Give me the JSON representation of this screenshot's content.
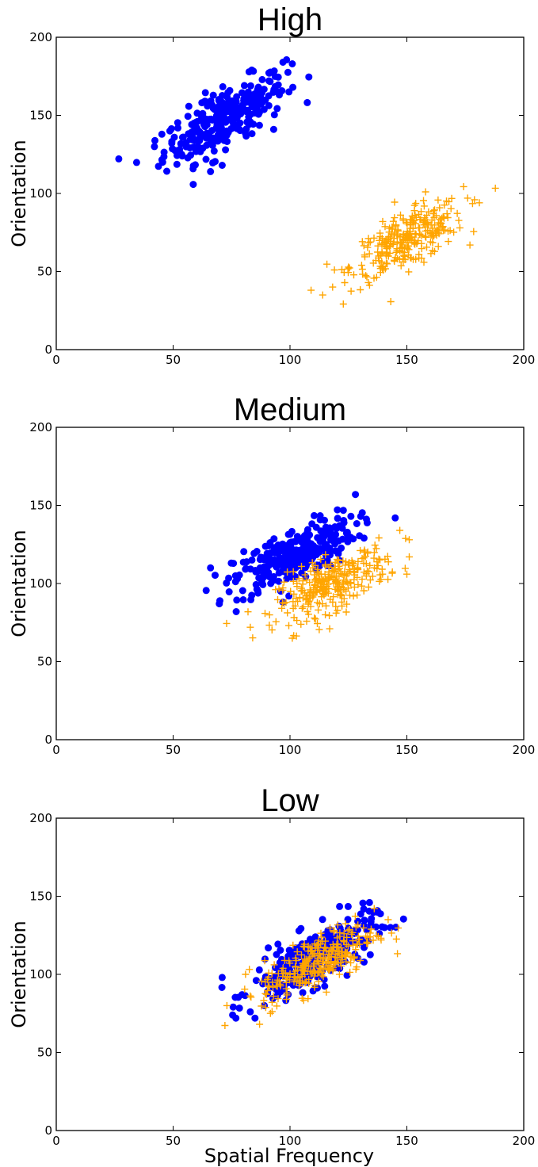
{
  "chart_data": [
    {
      "type": "scatter",
      "title": "High",
      "xlabel": "",
      "ylabel": "Orientation",
      "xlim": [
        0,
        200
      ],
      "ylim": [
        0,
        200
      ],
      "xticks": [
        "0",
        "50",
        "100",
        "150",
        "200"
      ],
      "yticks": [
        "0",
        "50",
        "100",
        "150",
        "200"
      ],
      "grid": false,
      "series": [
        {
          "color": "#0000ff",
          "marker": "circle",
          "center": [
            72,
            148
          ],
          "sd": [
            13,
            14
          ],
          "corr": 0.75,
          "n": 300,
          "points": [
            [
              66,
              114
            ],
            [
              71,
              118
            ],
            [
              42,
              130
            ],
            [
              101,
              183
            ],
            [
              97,
              184
            ],
            [
              93,
              141
            ]
          ]
        },
        {
          "color": "#ffa500",
          "marker": "plus",
          "center": [
            150,
            70
          ],
          "sd": [
            12,
            12
          ],
          "corr": 0.7,
          "n": 300,
          "points": [
            [
              109,
              38
            ],
            [
              114,
              35
            ],
            [
              119,
              51
            ],
            [
              158,
              101
            ],
            [
              176,
              97
            ],
            [
              181,
              94
            ]
          ]
        }
      ]
    },
    {
      "type": "scatter",
      "title": "Medium",
      "xlabel": "",
      "ylabel": "Orientation",
      "xlim": [
        0,
        200
      ],
      "ylim": [
        0,
        200
      ],
      "xticks": [
        "0",
        "50",
        "100",
        "150",
        "200"
      ],
      "yticks": [
        "0",
        "50",
        "100",
        "150",
        "200"
      ],
      "grid": false,
      "series": [
        {
          "color": "#0000ff",
          "marker": "circle",
          "center": [
            102,
            118
          ],
          "sd": [
            13,
            12
          ],
          "corr": 0.7,
          "n": 300,
          "points": [
            [
              66,
              110
            ],
            [
              70,
              89
            ],
            [
              77,
              82
            ],
            [
              128,
              157
            ],
            [
              145,
              142
            ],
            [
              97,
              88
            ]
          ]
        },
        {
          "color": "#ffa500",
          "marker": "plus",
          "center": [
            118,
            100
          ],
          "sd": [
            12,
            11
          ],
          "corr": 0.65,
          "n": 300,
          "points": [
            [
              83,
              72
            ],
            [
              101,
              65
            ],
            [
              117,
              71
            ],
            [
              150,
              106
            ],
            [
              151,
              128
            ],
            [
              147,
              134
            ]
          ]
        }
      ]
    },
    {
      "type": "scatter",
      "title": "Low",
      "xlabel": "Spatial Frequency",
      "ylabel": "Orientation",
      "xlim": [
        0,
        200
      ],
      "ylim": [
        0,
        200
      ],
      "xticks": [
        "0",
        "50",
        "100",
        "150",
        "200"
      ],
      "yticks": [
        "0",
        "50",
        "100",
        "150",
        "200"
      ],
      "grid": false,
      "series": [
        {
          "color": "#0000ff",
          "marker": "circle",
          "center": [
            110,
            110
          ],
          "sd": [
            13,
            13
          ],
          "corr": 0.75,
          "n": 300,
          "points": [
            [
              71,
              98
            ],
            [
              83,
              76
            ],
            [
              85,
              72
            ],
            [
              134,
              146
            ],
            [
              143,
              130
            ],
            [
              89,
              80
            ]
          ]
        },
        {
          "color": "#ffa500",
          "marker": "plus",
          "center": [
            112,
            108
          ],
          "sd": [
            12,
            12
          ],
          "corr": 0.7,
          "n": 300,
          "points": [
            [
              73,
              80
            ],
            [
              87,
              68
            ],
            [
              139,
              122
            ],
            [
              142,
              135
            ]
          ]
        }
      ]
    }
  ]
}
